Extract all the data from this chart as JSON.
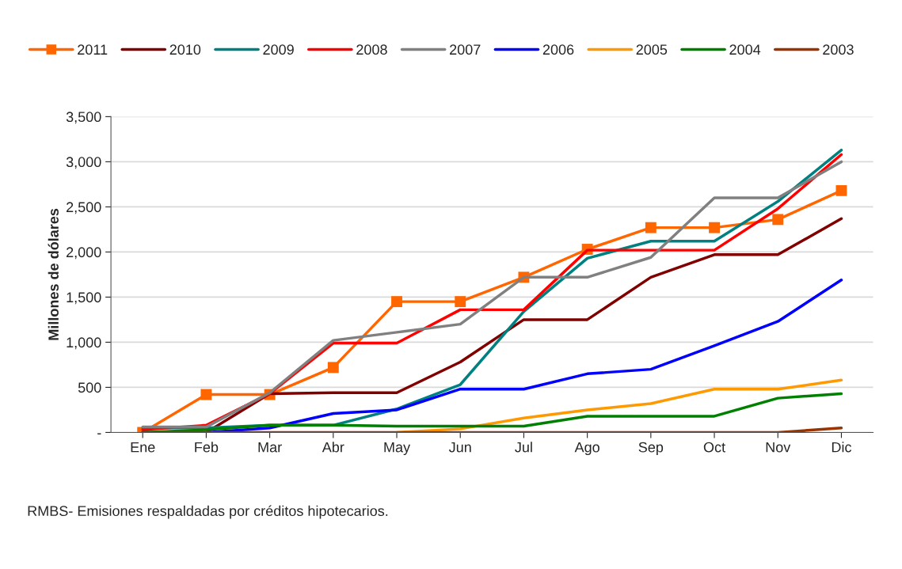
{
  "chart_data": {
    "type": "line",
    "ylabel": "Millones de dólares",
    "categories": [
      "Ene",
      "Feb",
      "Mar",
      "Abr",
      "May",
      "Jun",
      "Jul",
      "Ago",
      "Sep",
      "Oct",
      "Nov",
      "Dic"
    ],
    "series": [
      {
        "name": "2011",
        "color": "#ff6600",
        "marker": "square",
        "values": [
          0,
          420,
          420,
          720,
          1450,
          1450,
          1720,
          2030,
          2270,
          2270,
          2360,
          2680
        ]
      },
      {
        "name": "2010",
        "color": "#800000",
        "values": [
          0,
          0,
          430,
          440,
          440,
          780,
          1250,
          1250,
          1720,
          1970,
          1970,
          2370
        ]
      },
      {
        "name": "2009",
        "color": "#008080",
        "values": [
          50,
          50,
          80,
          80,
          260,
          530,
          1340,
          1930,
          2120,
          2120,
          2560,
          3130
        ]
      },
      {
        "name": "2008",
        "color": "#ff0000",
        "values": [
          30,
          80,
          430,
          990,
          990,
          1360,
          1360,
          2020,
          2020,
          2020,
          2480,
          3080
        ]
      },
      {
        "name": "2007",
        "color": "#808080",
        "values": [
          60,
          60,
          440,
          1020,
          1110,
          1200,
          1720,
          1720,
          1940,
          2600,
          2600,
          3000
        ]
      },
      {
        "name": "2006",
        "color": "#0000ff",
        "values": [
          0,
          0,
          50,
          210,
          250,
          480,
          480,
          650,
          700,
          960,
          1230,
          1690
        ]
      },
      {
        "name": "2005",
        "color": "#ff9900",
        "values": [
          null,
          null,
          null,
          null,
          0,
          40,
          160,
          250,
          320,
          480,
          480,
          580
        ]
      },
      {
        "name": "2004",
        "color": "#008000",
        "values": [
          0,
          30,
          80,
          80,
          70,
          70,
          70,
          180,
          180,
          180,
          380,
          430
        ]
      },
      {
        "name": "2003",
        "color": "#993300",
        "values": [
          0,
          0,
          0,
          0,
          0,
          0,
          0,
          0,
          0,
          0,
          0,
          50
        ]
      }
    ],
    "ylim": [
      0,
      3500
    ],
    "yticks": [
      {
        "value": 0,
        "label": "-"
      },
      {
        "value": 500,
        "label": "500"
      },
      {
        "value": 1000,
        "label": "1,000"
      },
      {
        "value": 1500,
        "label": "1,500"
      },
      {
        "value": 2000,
        "label": "2,000"
      },
      {
        "value": 2500,
        "label": "2,500"
      },
      {
        "value": 3000,
        "label": "3,000"
      },
      {
        "value": 3500,
        "label": "3,500"
      }
    ],
    "grid": "y",
    "legend": "top",
    "marker": "none",
    "line_style": "solid",
    "annotations": [
      "RMBS- Emisiones respaldadas por créditos hipotecarios."
    ]
  }
}
